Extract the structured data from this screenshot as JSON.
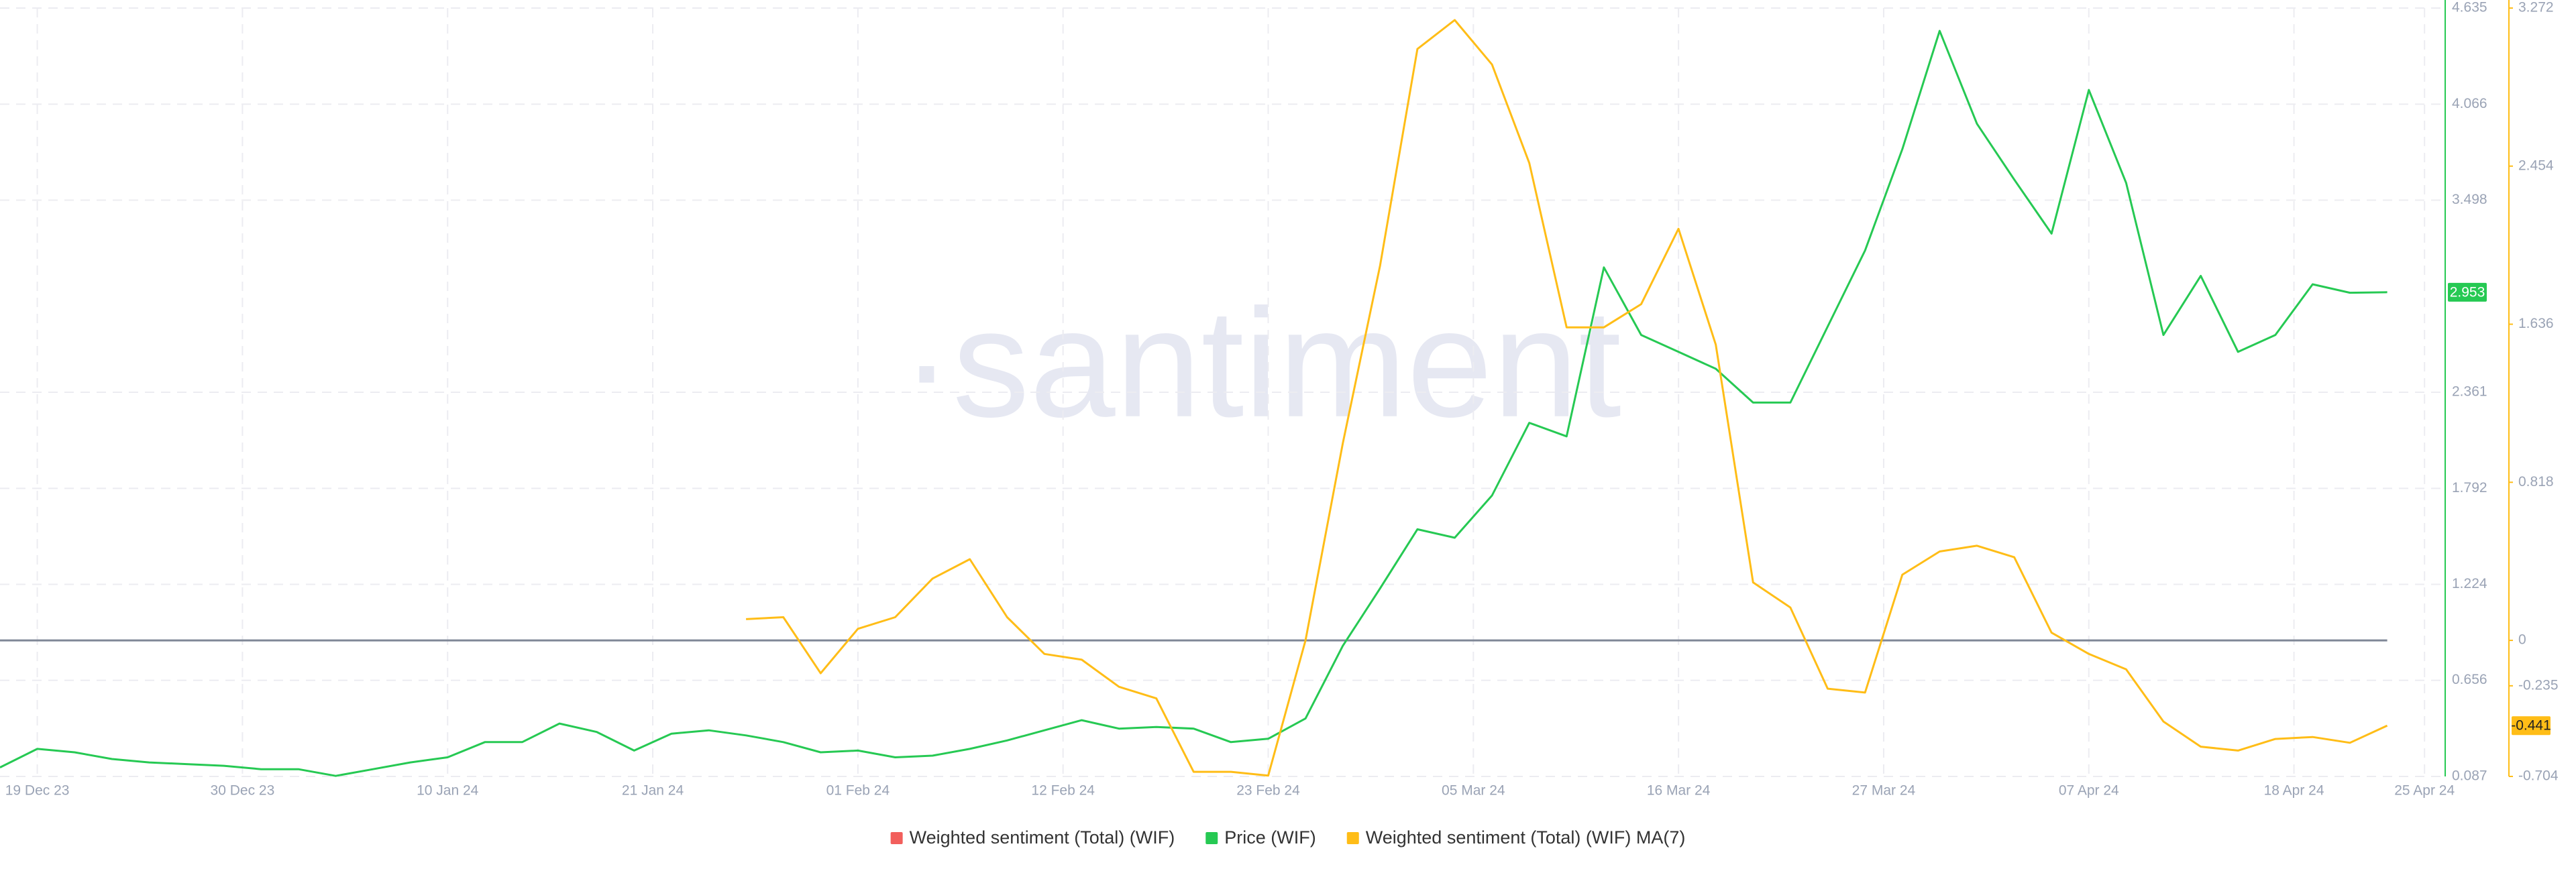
{
  "chart_data": {
    "type": "line",
    "watermark": "·santiment",
    "x": [
      "2023-12-17",
      "2023-12-19",
      "2023-12-21",
      "2023-12-23",
      "2023-12-25",
      "2023-12-27",
      "2023-12-29",
      "2023-12-31",
      "2024-01-02",
      "2024-01-04",
      "2024-01-06",
      "2024-01-08",
      "2024-01-10",
      "2024-01-12",
      "2024-01-14",
      "2024-01-16",
      "2024-01-18",
      "2024-01-20",
      "2024-01-22",
      "2024-01-24",
      "2024-01-26",
      "2024-01-28",
      "2024-01-30",
      "2024-02-01",
      "2024-02-03",
      "2024-02-05",
      "2024-02-07",
      "2024-02-09",
      "2024-02-11",
      "2024-02-13",
      "2024-02-15",
      "2024-02-17",
      "2024-02-19",
      "2024-02-21",
      "2024-02-23",
      "2024-02-25",
      "2024-02-27",
      "2024-02-29",
      "2024-03-02",
      "2024-03-04",
      "2024-03-06",
      "2024-03-08",
      "2024-03-10",
      "2024-03-12",
      "2024-03-14",
      "2024-03-16",
      "2024-03-18",
      "2024-03-20",
      "2024-03-22",
      "2024-03-24",
      "2024-03-26",
      "2024-03-28",
      "2024-03-30",
      "2024-04-01",
      "2024-04-03",
      "2024-04-05",
      "2024-04-07",
      "2024-04-09",
      "2024-04-11",
      "2024-04-13",
      "2024-04-15",
      "2024-04-17",
      "2024-04-19",
      "2024-04-21",
      "2024-04-23"
    ],
    "series": [
      {
        "name": "Weighted sentiment (Total) (WIF)",
        "color": "#f25f5c",
        "axis": "y2",
        "values": [
          null,
          null,
          null,
          null,
          null,
          null,
          null,
          null,
          null,
          null,
          null,
          null,
          null,
          null,
          null,
          null,
          null,
          null,
          null,
          null,
          null,
          null,
          null,
          null,
          null,
          null,
          null,
          null,
          null,
          null,
          null,
          null,
          null,
          null,
          null,
          null,
          null,
          null,
          null,
          null,
          null,
          null,
          null,
          null,
          null,
          null,
          null,
          null,
          null,
          null,
          null,
          null,
          null,
          null,
          null,
          null,
          null,
          null,
          null,
          null,
          null,
          null,
          null,
          null,
          null
        ]
      },
      {
        "name": "Price (WIF)",
        "color": "#26c953",
        "axis": "y",
        "values": [
          0.14,
          0.25,
          0.23,
          0.19,
          0.17,
          0.16,
          0.15,
          0.13,
          0.13,
          0.09,
          0.13,
          0.17,
          0.2,
          0.29,
          0.29,
          0.4,
          0.35,
          0.24,
          0.34,
          0.36,
          0.33,
          0.29,
          0.23,
          0.24,
          0.2,
          0.21,
          0.25,
          0.3,
          0.36,
          0.42,
          0.37,
          0.38,
          0.37,
          0.29,
          0.31,
          0.43,
          0.86,
          1.2,
          1.55,
          1.5,
          1.75,
          2.18,
          2.1,
          3.1,
          2.7,
          2.6,
          2.5,
          2.3,
          2.3,
          2.75,
          3.2,
          3.8,
          4.5,
          3.95,
          3.62,
          3.3,
          4.15,
          3.6,
          2.7,
          3.05,
          2.6,
          2.7,
          3.0,
          2.95,
          2.953
        ]
      },
      {
        "name": "Weighted sentiment (Total) (WIF) MA(7)",
        "color": "#ffbd17",
        "axis": "y2",
        "values": [
          null,
          null,
          null,
          null,
          null,
          null,
          null,
          null,
          null,
          null,
          null,
          null,
          null,
          null,
          null,
          null,
          null,
          null,
          null,
          null,
          0.11,
          0.12,
          -0.17,
          0.06,
          0.12,
          0.32,
          0.42,
          0.12,
          -0.07,
          -0.1,
          -0.24,
          -0.3,
          -0.68,
          -0.68,
          -0.7,
          0.0,
          1.02,
          1.94,
          3.06,
          3.21,
          2.98,
          2.47,
          1.62,
          1.62,
          1.74,
          2.13,
          1.53,
          0.3,
          0.17,
          -0.25,
          -0.27,
          0.34,
          0.46,
          0.49,
          0.43,
          0.04,
          -0.07,
          -0.15,
          -0.42,
          -0.55,
          -0.57,
          -0.51,
          -0.5,
          -0.53,
          -0.441
        ]
      }
    ],
    "xlim": [
      "2023-12-17",
      "2024-04-26"
    ],
    "xticks": [
      {
        "value": "2023-12-19",
        "label": "19 Dec 23"
      },
      {
        "value": "2023-12-30",
        "label": "30 Dec 23"
      },
      {
        "value": "2024-01-10",
        "label": "10 Jan 24"
      },
      {
        "value": "2024-01-21",
        "label": "21 Jan 24"
      },
      {
        "value": "2024-02-01",
        "label": "01 Feb 24"
      },
      {
        "value": "2024-02-12",
        "label": "12 Feb 24"
      },
      {
        "value": "2024-02-23",
        "label": "23 Feb 24"
      },
      {
        "value": "2024-03-05",
        "label": "05 Mar 24"
      },
      {
        "value": "2024-03-16",
        "label": "16 Mar 24"
      },
      {
        "value": "2024-03-27",
        "label": "27 Mar 24"
      },
      {
        "value": "2024-04-07",
        "label": "07 Apr 24"
      },
      {
        "value": "2024-04-18",
        "label": "18 Apr 24"
      },
      {
        "value": "2024-04-25",
        "label": "25 Apr 24"
      }
    ],
    "ylim": [
      0.087,
      4.635
    ],
    "yticks": [
      0.087,
      0.656,
      1.224,
      1.792,
      2.361,
      3.498,
      4.066,
      4.635
    ],
    "y2lim": [
      -0.704,
      3.272
    ],
    "y2ticks": [
      -0.704,
      -0.235,
      0,
      0.818,
      1.636,
      2.454,
      3.272
    ],
    "grid": true
  }
}
